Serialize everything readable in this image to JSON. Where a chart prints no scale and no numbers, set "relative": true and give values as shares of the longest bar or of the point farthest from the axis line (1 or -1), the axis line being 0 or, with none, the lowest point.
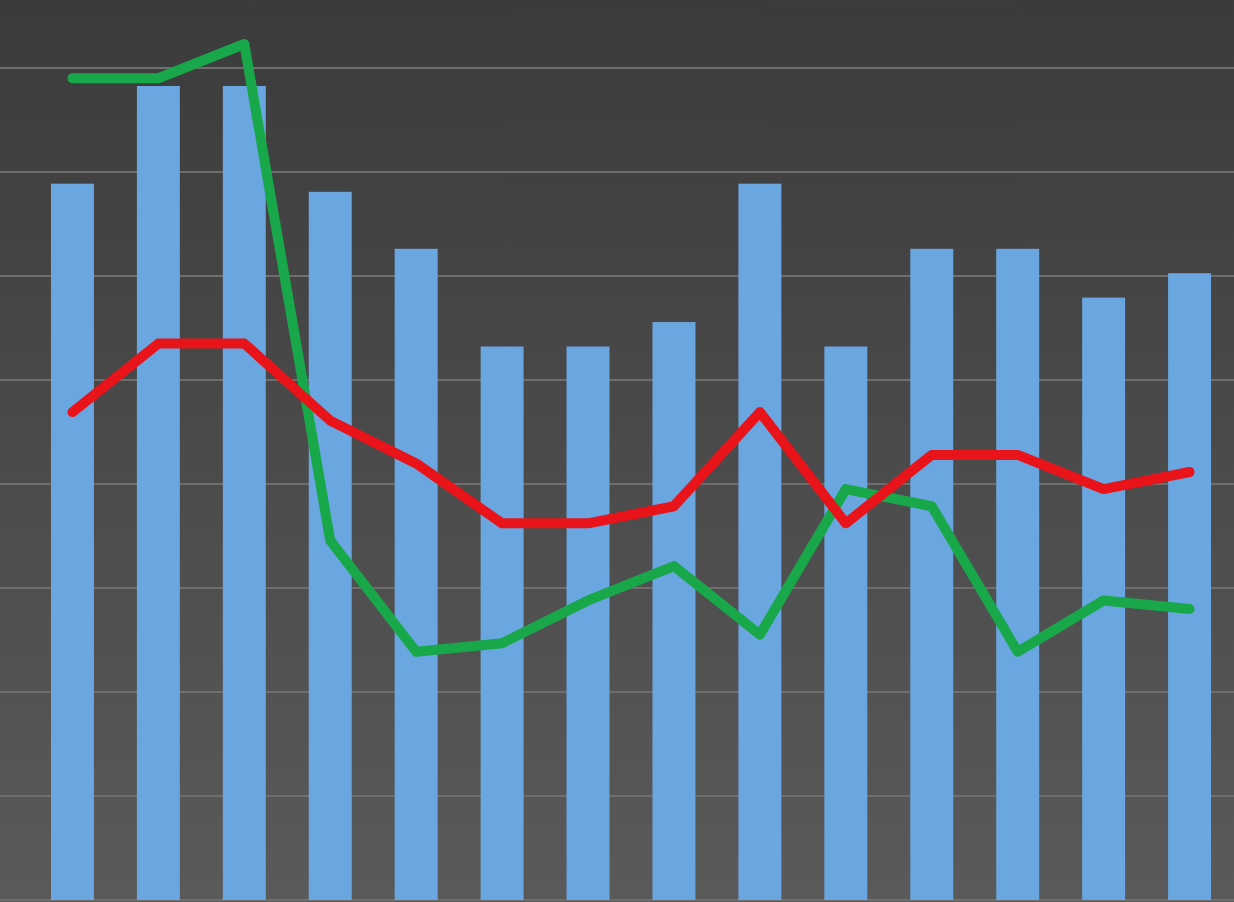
{
  "chart_data": [
    {
      "type": "bar",
      "relative": true,
      "grid": true,
      "categories": [
        null,
        null,
        null,
        null,
        null,
        null,
        null,
        null,
        null,
        null,
        null,
        null,
        null,
        null
      ],
      "series": [
        {
          "color": "#6aa6e0",
          "values": [
            0.88,
            1,
            1,
            0.87,
            0.8,
            0.68,
            0.68,
            0.71,
            0.88,
            0.68,
            0.8,
            0.8,
            0.74,
            0.77
          ]
        }
      ]
    },
    {
      "type": "line",
      "relative": true,
      "categories": [
        null,
        null,
        null,
        null,
        null,
        null,
        null,
        null,
        null,
        null,
        null,
        null,
        null,
        null
      ],
      "series": [
        {
          "color": "#18a84a",
          "values": [
            0.96,
            0.96,
            1,
            0.42,
            0.29,
            0.3,
            0.35,
            0.39,
            0.31,
            0.48,
            0.46,
            0.29,
            0.35,
            0.34
          ]
        },
        {
          "color": "#e8141a",
          "values": [
            0.57,
            0.65,
            0.65,
            0.56,
            0.51,
            0.44,
            0.44,
            0.46,
            0.57,
            0.44,
            0.52,
            0.52,
            0.48,
            0.5
          ]
        }
      ]
    }
  ]
}
